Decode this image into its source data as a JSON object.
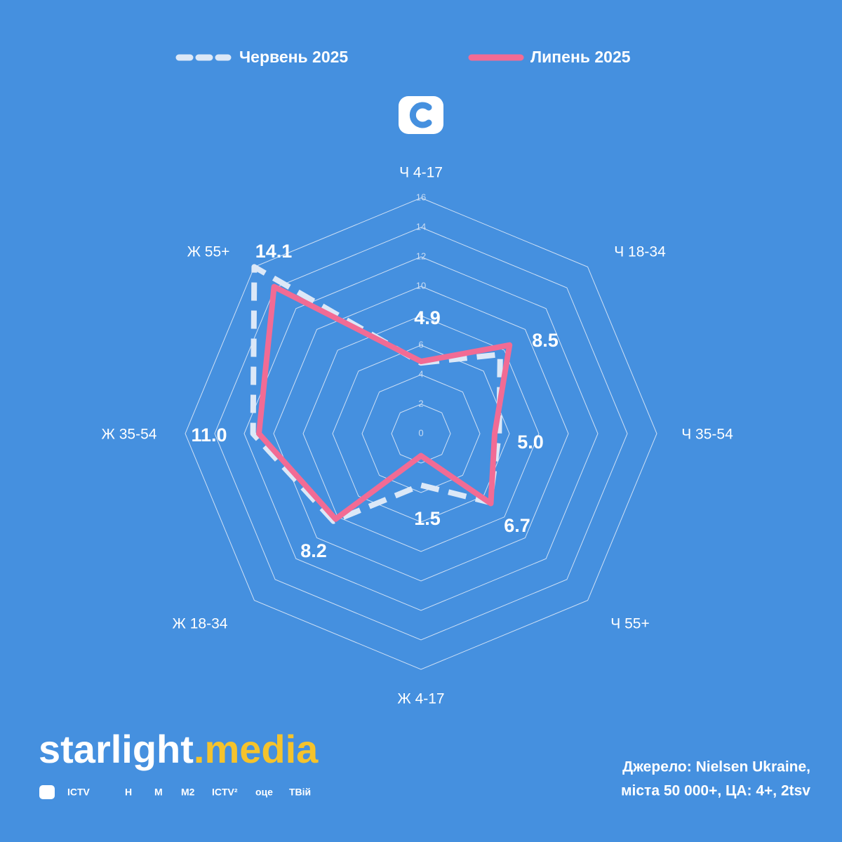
{
  "chart_data": {
    "type": "radar",
    "categories": [
      "Ч 4-17",
      "Ч 18-34",
      "Ч 35-54",
      "Ч 55+",
      "Ж 4-17",
      "Ж 18-34",
      "Ж 35-54",
      "Ж 55+"
    ],
    "series": [
      {
        "name": "Червень 2025",
        "color": "#dce8f7",
        "line_style": "dashed",
        "values": [
          4.8,
          7.6,
          5.3,
          6.6,
          3.5,
          8.4,
          11.4,
          16.0
        ]
      },
      {
        "name": "Липень 2025",
        "color": "#f26b94",
        "line_style": "solid",
        "values": [
          4.9,
          8.5,
          5.0,
          6.7,
          1.5,
          8.2,
          11.0,
          14.1
        ],
        "value_labels": [
          "4.9",
          "8.5",
          "5.0",
          "6.7",
          "1.5",
          "8.2",
          "11.0",
          "14.1"
        ]
      }
    ],
    "ylim": [
      0,
      16
    ],
    "yticks": [
      0,
      2,
      4,
      6,
      8,
      10,
      12,
      14,
      16
    ],
    "grid": true
  },
  "brand": {
    "name_part1": "starlight",
    "name_part2": ".media",
    "channels": [
      "ICTV",
      "Н",
      "М",
      "М2",
      "ICTV²",
      "оце",
      "ТВій"
    ]
  },
  "source": [
    "Джерело: Nielsen Ukraine,",
    "міста 50 000+, ЦА: 4+, 2tsv"
  ]
}
